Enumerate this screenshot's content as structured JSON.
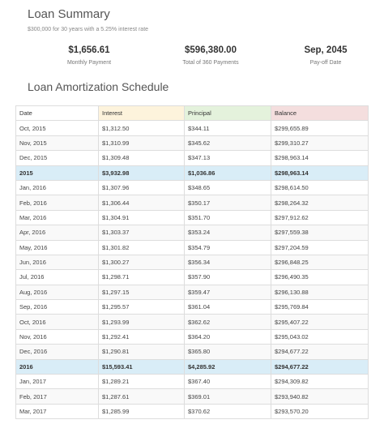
{
  "summary": {
    "title": "Loan Summary",
    "subtitle": "$300,000 for 30 years with a 5.25% interest rate",
    "stats": [
      {
        "value": "$1,656.61",
        "label": "Monthly Payment"
      },
      {
        "value": "$596,380.00",
        "label": "Total of 360 Payments"
      },
      {
        "value": "Sep, 2045",
        "label": "Pay-off Date"
      }
    ]
  },
  "schedule": {
    "title": "Loan Amortization Schedule",
    "headers": [
      "Date",
      "Interest",
      "Principal",
      "Balance"
    ],
    "header_colors": [
      "#ffffff",
      "#fdf3dc",
      "#e4f2dc",
      "#f4dede"
    ],
    "year_row_color": "#d9edf7",
    "rows": [
      {
        "date": "Oct, 2015",
        "interest": "$1,312.50",
        "principal": "$344.11",
        "balance": "$299,655.89",
        "year": false
      },
      {
        "date": "Nov, 2015",
        "interest": "$1,310.99",
        "principal": "$345.62",
        "balance": "$299,310.27",
        "year": false
      },
      {
        "date": "Dec, 2015",
        "interest": "$1,309.48",
        "principal": "$347.13",
        "balance": "$298,963.14",
        "year": false
      },
      {
        "date": "2015",
        "interest": "$3,932.98",
        "principal": "$1,036.86",
        "balance": "$298,963.14",
        "year": true
      },
      {
        "date": "Jan, 2016",
        "interest": "$1,307.96",
        "principal": "$348.65",
        "balance": "$298,614.50",
        "year": false
      },
      {
        "date": "Feb, 2016",
        "interest": "$1,306.44",
        "principal": "$350.17",
        "balance": "$298,264.32",
        "year": false
      },
      {
        "date": "Mar, 2016",
        "interest": "$1,304.91",
        "principal": "$351.70",
        "balance": "$297,912.62",
        "year": false
      },
      {
        "date": "Apr, 2016",
        "interest": "$1,303.37",
        "principal": "$353.24",
        "balance": "$297,559.38",
        "year": false
      },
      {
        "date": "May, 2016",
        "interest": "$1,301.82",
        "principal": "$354.79",
        "balance": "$297,204.59",
        "year": false
      },
      {
        "date": "Jun, 2016",
        "interest": "$1,300.27",
        "principal": "$356.34",
        "balance": "$296,848.25",
        "year": false
      },
      {
        "date": "Jul, 2016",
        "interest": "$1,298.71",
        "principal": "$357.90",
        "balance": "$296,490.35",
        "year": false
      },
      {
        "date": "Aug, 2016",
        "interest": "$1,297.15",
        "principal": "$359.47",
        "balance": "$296,130.88",
        "year": false
      },
      {
        "date": "Sep, 2016",
        "interest": "$1,295.57",
        "principal": "$361.04",
        "balance": "$295,769.84",
        "year": false
      },
      {
        "date": "Oct, 2016",
        "interest": "$1,293.99",
        "principal": "$362.62",
        "balance": "$295,407.22",
        "year": false
      },
      {
        "date": "Nov, 2016",
        "interest": "$1,292.41",
        "principal": "$364.20",
        "balance": "$295,043.02",
        "year": false
      },
      {
        "date": "Dec, 2016",
        "interest": "$1,290.81",
        "principal": "$365.80",
        "balance": "$294,677.22",
        "year": false
      },
      {
        "date": "2016",
        "interest": "$15,593.41",
        "principal": "$4,285.92",
        "balance": "$294,677.22",
        "year": true
      },
      {
        "date": "Jan, 2017",
        "interest": "$1,289.21",
        "principal": "$367.40",
        "balance": "$294,309.82",
        "year": false
      },
      {
        "date": "Feb, 2017",
        "interest": "$1,287.61",
        "principal": "$369.01",
        "balance": "$293,940.82",
        "year": false
      },
      {
        "date": "Mar, 2017",
        "interest": "$1,285.99",
        "principal": "$370.62",
        "balance": "$293,570.20",
        "year": false
      }
    ]
  }
}
